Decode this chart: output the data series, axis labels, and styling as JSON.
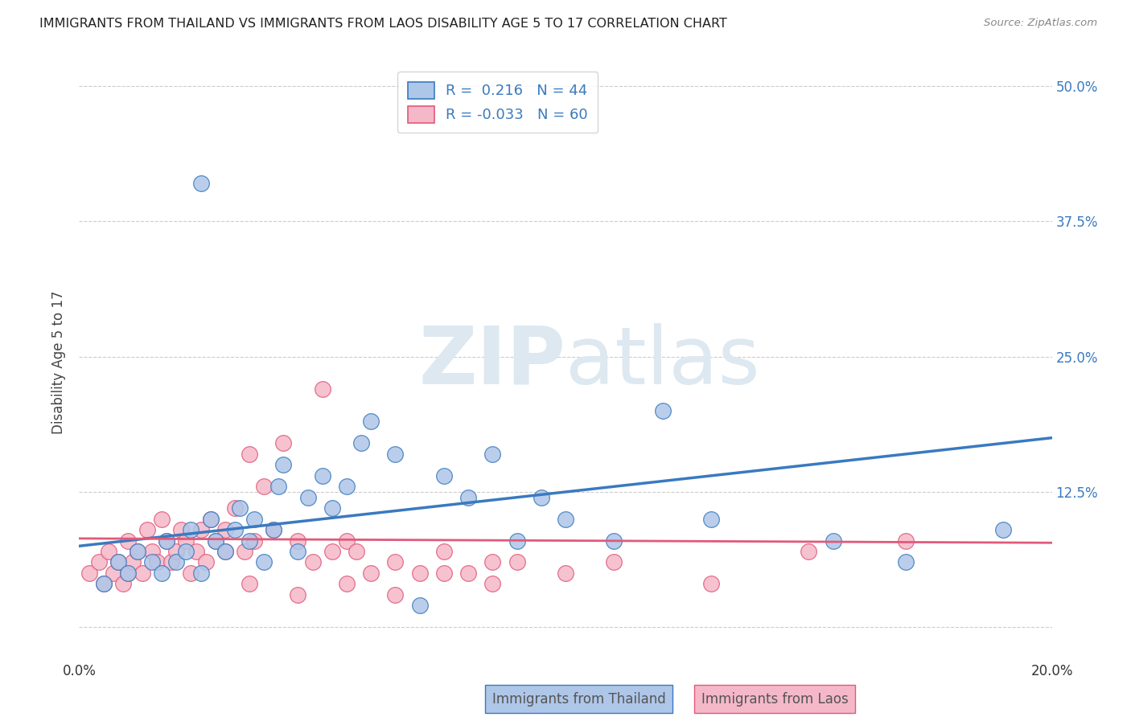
{
  "title": "IMMIGRANTS FROM THAILAND VS IMMIGRANTS FROM LAOS DISABILITY AGE 5 TO 17 CORRELATION CHART",
  "source": "Source: ZipAtlas.com",
  "ylabel": "Disability Age 5 to 17",
  "x_min": 0.0,
  "x_max": 0.2,
  "y_min": -0.03,
  "y_max": 0.52,
  "y_ticks": [
    0.0,
    0.125,
    0.25,
    0.375,
    0.5
  ],
  "y_tick_labels_right": [
    "",
    "12.5%",
    "25.0%",
    "37.5%",
    "50.0%"
  ],
  "x_ticks": [
    0.0,
    0.05,
    0.1,
    0.15,
    0.2
  ],
  "x_tick_labels": [
    "0.0%",
    "",
    "",
    "",
    "20.0%"
  ],
  "thailand_color": "#aec6e8",
  "laos_color": "#f5b8c8",
  "thailand_line_color": "#3a7abf",
  "laos_line_color": "#e05a7a",
  "background_color": "#ffffff",
  "thailand_R": 0.216,
  "laos_R": -0.033,
  "thailand_N": 44,
  "laos_N": 60,
  "thailand_scatter_x": [
    0.005,
    0.008,
    0.01,
    0.012,
    0.015,
    0.017,
    0.018,
    0.02,
    0.022,
    0.023,
    0.025,
    0.027,
    0.028,
    0.03,
    0.032,
    0.033,
    0.035,
    0.036,
    0.038,
    0.04,
    0.041,
    0.042,
    0.045,
    0.047,
    0.05,
    0.052,
    0.055,
    0.058,
    0.06,
    0.065,
    0.07,
    0.075,
    0.08,
    0.085,
    0.09,
    0.095,
    0.1,
    0.11,
    0.12,
    0.13,
    0.155,
    0.17,
    0.19,
    0.025
  ],
  "thailand_scatter_y": [
    0.04,
    0.06,
    0.05,
    0.07,
    0.06,
    0.05,
    0.08,
    0.06,
    0.07,
    0.09,
    0.05,
    0.1,
    0.08,
    0.07,
    0.09,
    0.11,
    0.08,
    0.1,
    0.06,
    0.09,
    0.13,
    0.15,
    0.07,
    0.12,
    0.14,
    0.11,
    0.13,
    0.17,
    0.19,
    0.16,
    0.02,
    0.14,
    0.12,
    0.16,
    0.08,
    0.12,
    0.1,
    0.08,
    0.2,
    0.1,
    0.08,
    0.06,
    0.09,
    0.41
  ],
  "laos_scatter_x": [
    0.002,
    0.004,
    0.005,
    0.006,
    0.007,
    0.008,
    0.009,
    0.01,
    0.01,
    0.011,
    0.012,
    0.013,
    0.014,
    0.015,
    0.016,
    0.017,
    0.018,
    0.019,
    0.02,
    0.021,
    0.022,
    0.023,
    0.024,
    0.025,
    0.026,
    0.027,
    0.028,
    0.03,
    0.03,
    0.032,
    0.034,
    0.035,
    0.036,
    0.038,
    0.04,
    0.042,
    0.045,
    0.048,
    0.05,
    0.052,
    0.055,
    0.057,
    0.06,
    0.065,
    0.07,
    0.075,
    0.08,
    0.085,
    0.09,
    0.1,
    0.11,
    0.13,
    0.15,
    0.17,
    0.035,
    0.045,
    0.055,
    0.065,
    0.075,
    0.085
  ],
  "laos_scatter_y": [
    0.05,
    0.06,
    0.04,
    0.07,
    0.05,
    0.06,
    0.04,
    0.05,
    0.08,
    0.06,
    0.07,
    0.05,
    0.09,
    0.07,
    0.06,
    0.1,
    0.08,
    0.06,
    0.07,
    0.09,
    0.08,
    0.05,
    0.07,
    0.09,
    0.06,
    0.1,
    0.08,
    0.07,
    0.09,
    0.11,
    0.07,
    0.16,
    0.08,
    0.13,
    0.09,
    0.17,
    0.08,
    0.06,
    0.22,
    0.07,
    0.08,
    0.07,
    0.05,
    0.06,
    0.05,
    0.07,
    0.05,
    0.06,
    0.06,
    0.05,
    0.06,
    0.04,
    0.07,
    0.08,
    0.04,
    0.03,
    0.04,
    0.03,
    0.05,
    0.04
  ],
  "th_line_x0": 0.0,
  "th_line_y0": 0.075,
  "th_line_x1": 0.2,
  "th_line_y1": 0.175,
  "la_line_x0": 0.0,
  "la_line_y0": 0.082,
  "la_line_x1": 0.2,
  "la_line_y1": 0.078
}
